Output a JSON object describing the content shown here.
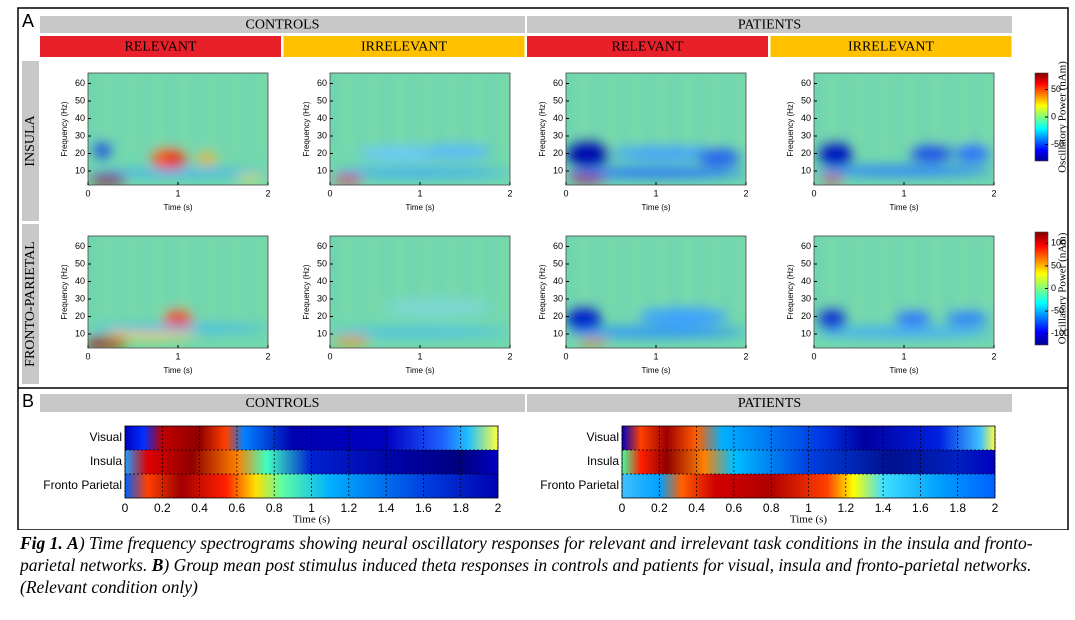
{
  "panel_a": {
    "label": "A",
    "groups": [
      "CONTROLS",
      "PATIENTS"
    ],
    "conditions": [
      "RELEVANT",
      "IRRELEVANT",
      "RELEVANT",
      "IRRELEVANT"
    ],
    "rows": [
      "INSULA",
      "FRONTO-PARIETAL"
    ],
    "y_label": "Frequency (Hz)",
    "x_label": "Time (s)",
    "xlim": [
      0,
      2
    ],
    "xticks": [
      0,
      1,
      2
    ],
    "ylim": [
      2,
      66
    ],
    "yticks": [
      10,
      20,
      30,
      40,
      50,
      60
    ],
    "colorbar_label": "Oscillatory Power (nAm)",
    "colorbars": [
      {
        "lim": [
          -80,
          80
        ],
        "ticks": [
          50,
          0,
          -50
        ]
      },
      {
        "lim": [
          -125,
          125
        ],
        "ticks": [
          100,
          50,
          0,
          -50,
          -100
        ]
      }
    ]
  },
  "panel_b": {
    "label": "B",
    "groups": [
      "CONTROLS",
      "PATIENTS"
    ],
    "rows": [
      "Visual",
      "Insula",
      "Fronto Parietal"
    ],
    "x_label": "Time (s)",
    "xlim": [
      0,
      2
    ],
    "xticks": [
      0,
      0.2,
      0.4,
      0.6,
      0.8,
      1,
      1.2,
      1.4,
      1.6,
      1.8,
      2
    ]
  },
  "caption": {
    "fig": "Fig 1.",
    "a": "A",
    "a_text": ") Time frequency spectrograms showing neural oscillatory responses for relevant and irrelevant task conditions in the insula and fronto-parietal networks. ",
    "b": "B",
    "b_text": ") Group mean post stimulus induced theta responses in controls and patients for visual, insula and fronto-parietal networks. (Relevant condition only)"
  }
}
